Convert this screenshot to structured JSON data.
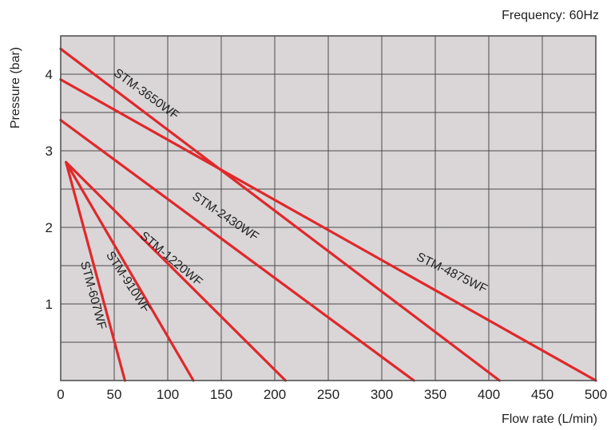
{
  "chart_data": {
    "type": "line",
    "subtitle": "Frequency: 60Hz",
    "xlabel": "Flow rate (L/min)",
    "ylabel": "Pressure (bar)",
    "xlim": [
      0,
      500
    ],
    "ylim": [
      0,
      4.5
    ],
    "x_ticks": [
      0,
      50,
      100,
      150,
      200,
      250,
      300,
      350,
      400,
      450,
      500
    ],
    "y_ticks": [
      1,
      2,
      3,
      4
    ],
    "grid": true,
    "colors": {
      "plot_bg": "#dad6d7",
      "grid": "#4a4a4a",
      "line": "#e0282b"
    },
    "series": [
      {
        "name": "STM-607WF",
        "x": [
          5,
          60
        ],
        "y": [
          2.85,
          0
        ]
      },
      {
        "name": "STM-910WF",
        "x": [
          5,
          124
        ],
        "y": [
          2.85,
          0
        ]
      },
      {
        "name": "STM-1220WF",
        "x": [
          5,
          210
        ],
        "y": [
          2.85,
          0
        ]
      },
      {
        "name": "STM-2430WF",
        "x": [
          0,
          330
        ],
        "y": [
          3.4,
          0
        ]
      },
      {
        "name": "STM-3650WF",
        "x": [
          0,
          410
        ],
        "y": [
          4.33,
          0
        ]
      },
      {
        "name": "STM-4875WF",
        "x": [
          0,
          500
        ],
        "y": [
          3.93,
          0
        ]
      }
    ],
    "series_labels": [
      {
        "series": 0,
        "text": "STM-607WF",
        "at_x": 27,
        "at_y": 1.1,
        "angle": 75
      },
      {
        "series": 1,
        "text": "STM-910WF",
        "at_x": 60,
        "at_y": 1.26,
        "angle": 57
      },
      {
        "series": 2,
        "text": "STM-1220WF",
        "at_x": 101,
        "at_y": 1.55,
        "angle": 40
      },
      {
        "series": 3,
        "text": "STM-2430WF",
        "at_x": 152,
        "at_y": 2.1,
        "angle": 34
      },
      {
        "series": 4,
        "text": "STM-3650WF",
        "at_x": 78,
        "at_y": 3.7,
        "angle": 36
      },
      {
        "series": 5,
        "text": "STM-4875WF",
        "at_x": 364,
        "at_y": 1.36,
        "angle": 26
      }
    ]
  }
}
